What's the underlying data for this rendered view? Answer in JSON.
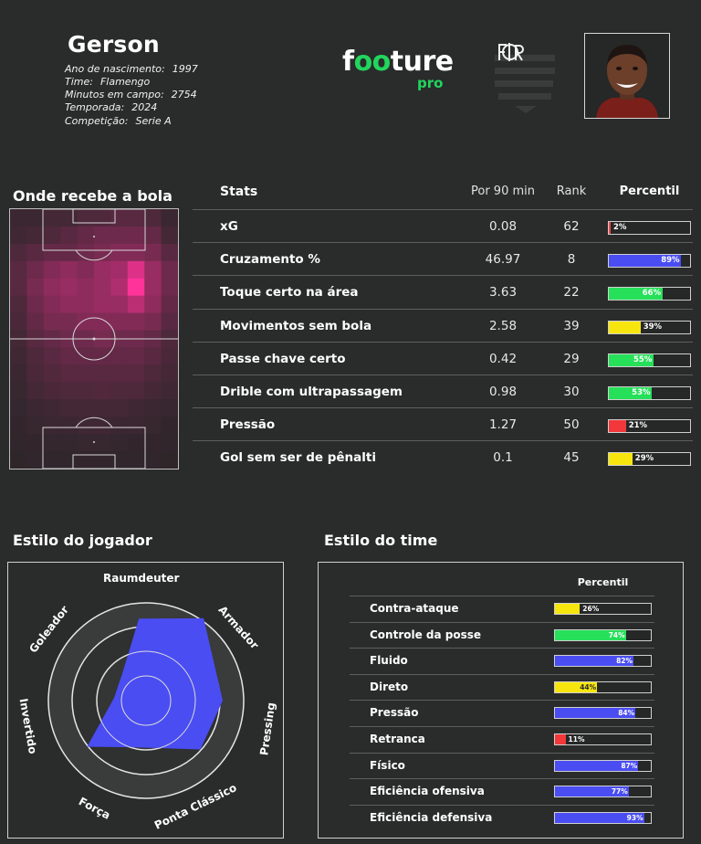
{
  "player": {
    "name": "Gerson",
    "info": [
      {
        "label": "Ano de nascimento:",
        "value": "1997"
      },
      {
        "label": "Time:",
        "value": "Flamengo"
      },
      {
        "label": "Minutos em campo:",
        "value": "2754"
      },
      {
        "label": "Temporada:",
        "value": "2024"
      },
      {
        "label": "Competição:",
        "value": "Serie A"
      }
    ]
  },
  "brand": {
    "main": "footure",
    "sub": "pro",
    "accent": "#21d55d"
  },
  "sections": {
    "heatmap_title": "Onde recebe a bola",
    "player_style_title": "Estilo do jogador",
    "team_style_title": "Estilo do time"
  },
  "stats": {
    "headers": {
      "stat": "Stats",
      "per90": "Por 90 min",
      "rank": "Rank",
      "percentile": "Percentil"
    },
    "rows": [
      {
        "label": "xG",
        "per90": "0.08",
        "rank": "62",
        "pct": 2,
        "pct_label": "2%",
        "color": "#f2484a"
      },
      {
        "label": "Cruzamento %",
        "per90": "46.97",
        "rank": "8",
        "pct": 89,
        "pct_label": "89%",
        "color": "#4a4df2"
      },
      {
        "label": "Toque certo na área",
        "per90": "3.63",
        "rank": "22",
        "pct": 66,
        "pct_label": "66%",
        "color": "#26e05a"
      },
      {
        "label": "Movimentos sem bola",
        "per90": "2.58",
        "rank": "39",
        "pct": 39,
        "pct_label": "39%",
        "color": "#f7e60e"
      },
      {
        "label": "Passe chave certo",
        "per90": "0.42",
        "rank": "29",
        "pct": 55,
        "pct_label": "55%",
        "color": "#26e05a"
      },
      {
        "label": "Drible com ultrapassagem",
        "per90": "0.98",
        "rank": "30",
        "pct": 53,
        "pct_label": "53%",
        "color": "#26e05a"
      },
      {
        "label": "Pressão",
        "per90": "1.27",
        "rank": "50",
        "pct": 21,
        "pct_label": "21%",
        "color": "#f2383a"
      },
      {
        "label": "Gol sem ser de pênalti",
        "per90": "0.1",
        "rank": "45",
        "pct": 29,
        "pct_label": "29%",
        "color": "#f7e60e"
      }
    ]
  },
  "radar": {
    "color": "#4a4df2",
    "labels": [
      "Raumdeuter",
      "Armador",
      "Pressing",
      "Ponta Clássico",
      "Força",
      "Invertido",
      "Goleador"
    ]
  },
  "team": {
    "header": "Percentil",
    "rows": [
      {
        "label": "Contra-ataque",
        "pct": 26,
        "pct_label": "26%",
        "color": "#f7e60e"
      },
      {
        "label": "Controle da posse",
        "pct": 74,
        "pct_label": "74%",
        "color": "#26e05a"
      },
      {
        "label": "Fluido",
        "pct": 82,
        "pct_label": "82%",
        "color": "#4a4df2"
      },
      {
        "label": "Direto",
        "pct": 44,
        "pct_label": "44%",
        "color": "#f7e60e"
      },
      {
        "label": "Pressão",
        "pct": 84,
        "pct_label": "84%",
        "color": "#4a4df2"
      },
      {
        "label": "Retranca",
        "pct": 11,
        "pct_label": "11%",
        "color": "#f2383a"
      },
      {
        "label": "Físico",
        "pct": 87,
        "pct_label": "87%",
        "color": "#4a4df2"
      },
      {
        "label": "Eficiência ofensiva",
        "pct": 77,
        "pct_label": "77%",
        "color": "#4a4df2"
      },
      {
        "label": "Eficiência defensiva",
        "pct": 93,
        "pct_label": "93%",
        "color": "#4a4df2"
      }
    ]
  }
}
